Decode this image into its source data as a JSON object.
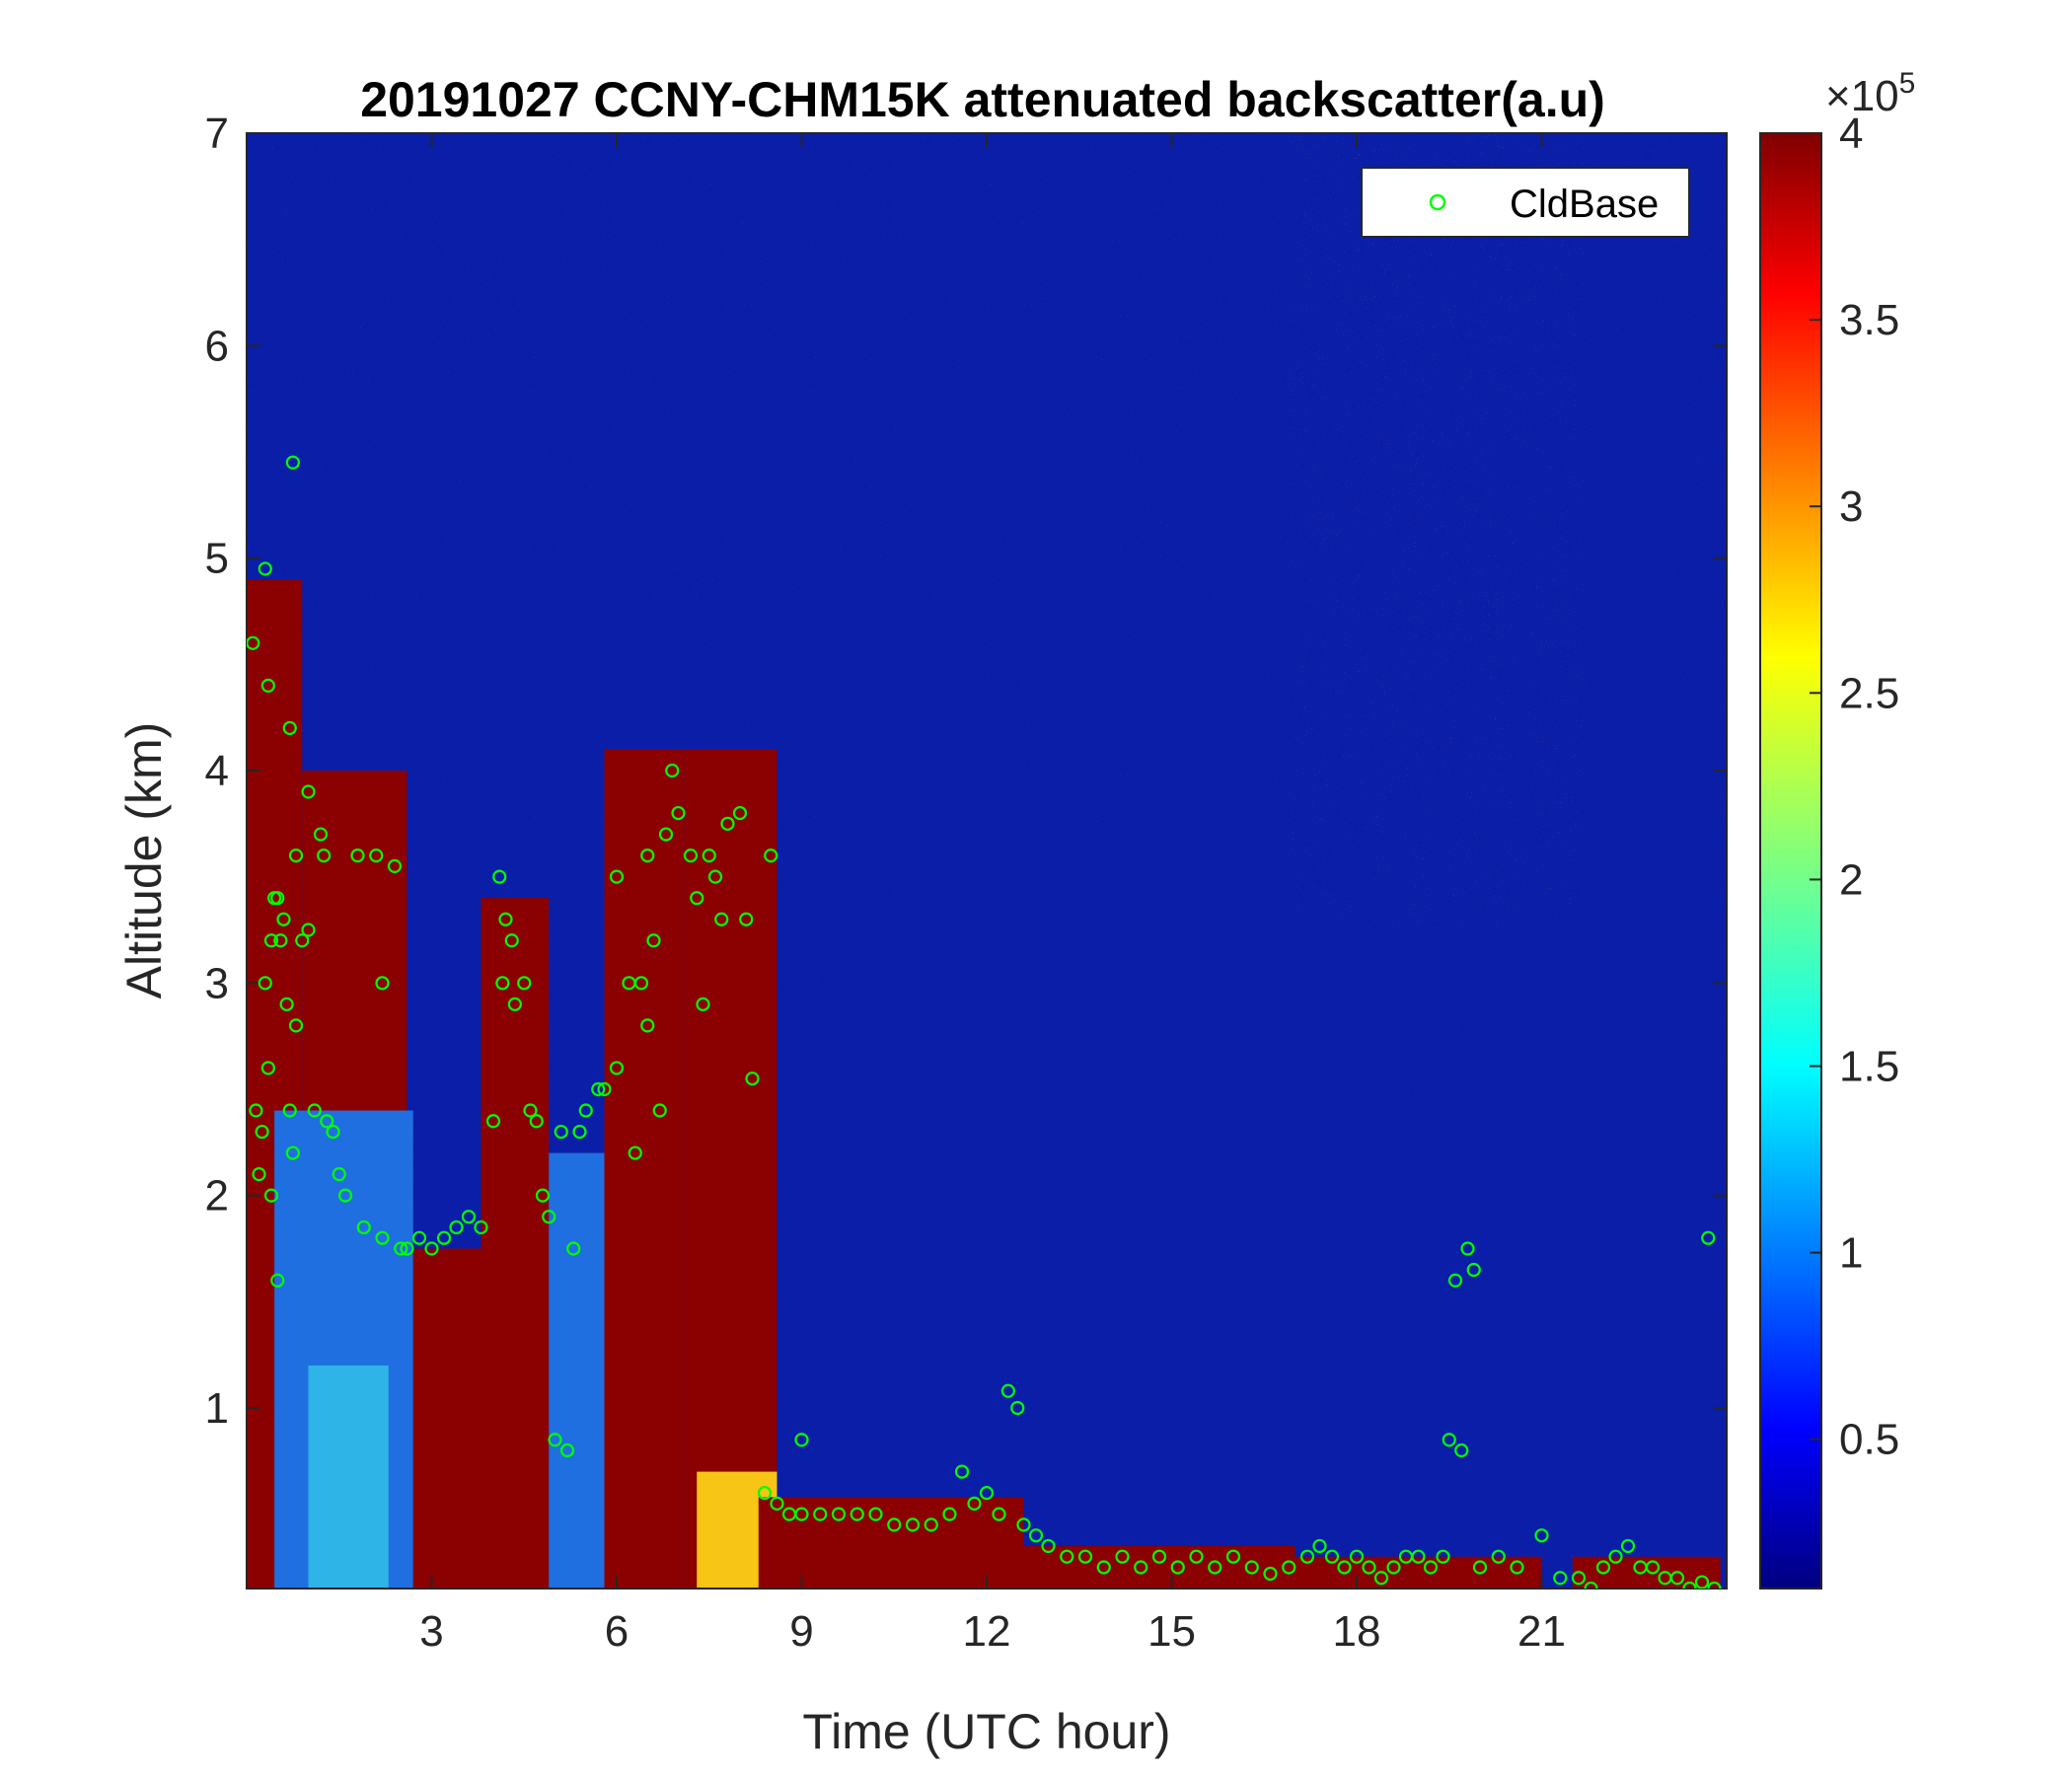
{
  "chart_data": {
    "type": "heatmap",
    "title": "20191027 CCNY-CHM15K attenuated backscatter(a.u)",
    "xlabel": "Time (UTC hour)",
    "ylabel": "Altitude (km)",
    "xlim": [
      0,
      24
    ],
    "ylim": [
      0.15,
      7
    ],
    "x_ticks": [
      3,
      6,
      9,
      12,
      15,
      18,
      21
    ],
    "x_tick_labels": [
      "3",
      "6",
      "9",
      "12",
      "15",
      "18",
      "21"
    ],
    "y_ticks": [
      1,
      2,
      3,
      4,
      5,
      6,
      7
    ],
    "y_tick_labels": [
      "1",
      "2",
      "3",
      "4",
      "5",
      "6",
      "7"
    ],
    "colorbar": {
      "range": [
        10000,
        400000
      ],
      "ticks": [
        50000,
        100000,
        150000,
        200000,
        250000,
        300000,
        350000,
        400000
      ],
      "tick_labels": [
        "0.5",
        "1",
        "1.5",
        "2",
        "2.5",
        "3",
        "3.5",
        "4"
      ],
      "multiplier_base": "×10",
      "multiplier_exp": "5",
      "colormap": "jet"
    },
    "legend": {
      "position": "top-right",
      "entries": [
        "CldBase"
      ]
    },
    "series": [
      {
        "name": "CldBase",
        "marker": "circle",
        "color": "#00ff00",
        "points": [
          [
            0.1,
            4.6
          ],
          [
            0.15,
            2.4
          ],
          [
            0.2,
            2.1
          ],
          [
            0.25,
            2.3
          ],
          [
            0.3,
            3.0
          ],
          [
            0.3,
            4.95
          ],
          [
            0.35,
            2.6
          ],
          [
            0.35,
            4.4
          ],
          [
            0.4,
            3.2
          ],
          [
            0.4,
            2.0
          ],
          [
            0.45,
            3.4
          ],
          [
            0.5,
            1.6
          ],
          [
            0.5,
            3.4
          ],
          [
            0.55,
            3.2
          ],
          [
            0.6,
            3.3
          ],
          [
            0.65,
            2.9
          ],
          [
            0.7,
            2.4
          ],
          [
            0.7,
            4.2
          ],
          [
            0.75,
            2.2
          ],
          [
            0.75,
            5.45
          ],
          [
            0.8,
            3.6
          ],
          [
            0.8,
            2.8
          ],
          [
            0.9,
            3.2
          ],
          [
            1.0,
            3.9
          ],
          [
            1.0,
            3.25
          ],
          [
            1.1,
            2.4
          ],
          [
            1.2,
            3.7
          ],
          [
            1.25,
            3.6
          ],
          [
            1.3,
            2.35
          ],
          [
            1.4,
            2.3
          ],
          [
            1.5,
            2.1
          ],
          [
            1.6,
            2.0
          ],
          [
            1.8,
            3.6
          ],
          [
            1.9,
            1.85
          ],
          [
            2.1,
            3.6
          ],
          [
            2.2,
            1.8
          ],
          [
            2.2,
            3.0
          ],
          [
            2.4,
            3.55
          ],
          [
            2.5,
            1.75
          ],
          [
            2.6,
            1.75
          ],
          [
            2.8,
            1.8
          ],
          [
            3.0,
            1.75
          ],
          [
            3.2,
            1.8
          ],
          [
            3.4,
            1.85
          ],
          [
            3.6,
            1.9
          ],
          [
            3.8,
            1.85
          ],
          [
            4.0,
            2.35
          ],
          [
            4.1,
            3.5
          ],
          [
            4.15,
            3.0
          ],
          [
            4.2,
            3.3
          ],
          [
            4.3,
            3.2
          ],
          [
            4.35,
            2.9
          ],
          [
            4.5,
            3.0
          ],
          [
            4.6,
            2.4
          ],
          [
            4.7,
            2.35
          ],
          [
            4.8,
            2.0
          ],
          [
            4.9,
            1.9
          ],
          [
            5.0,
            0.85
          ],
          [
            5.1,
            2.3
          ],
          [
            5.2,
            0.8
          ],
          [
            5.3,
            1.75
          ],
          [
            5.4,
            2.3
          ],
          [
            5.5,
            2.4
          ],
          [
            5.7,
            2.5
          ],
          [
            5.8,
            2.5
          ],
          [
            6.0,
            2.6
          ],
          [
            6.0,
            3.5
          ],
          [
            6.2,
            3.0
          ],
          [
            6.3,
            2.2
          ],
          [
            6.4,
            3.0
          ],
          [
            6.5,
            2.8
          ],
          [
            6.5,
            3.6
          ],
          [
            6.6,
            3.2
          ],
          [
            6.7,
            2.4
          ],
          [
            6.8,
            3.7
          ],
          [
            6.9,
            4.0
          ],
          [
            7.0,
            3.8
          ],
          [
            7.2,
            3.6
          ],
          [
            7.3,
            3.4
          ],
          [
            7.4,
            2.9
          ],
          [
            7.5,
            3.6
          ],
          [
            7.6,
            3.5
          ],
          [
            7.7,
            3.3
          ],
          [
            7.8,
            3.75
          ],
          [
            8.0,
            3.8
          ],
          [
            8.1,
            3.3
          ],
          [
            8.2,
            2.55
          ],
          [
            8.4,
            0.6
          ],
          [
            8.5,
            3.6
          ],
          [
            8.6,
            0.55
          ],
          [
            8.8,
            0.5
          ],
          [
            9.0,
            0.85
          ],
          [
            9.0,
            0.5
          ],
          [
            9.3,
            0.5
          ],
          [
            9.6,
            0.5
          ],
          [
            9.9,
            0.5
          ],
          [
            10.2,
            0.5
          ],
          [
            10.5,
            0.45
          ],
          [
            10.8,
            0.45
          ],
          [
            11.1,
            0.45
          ],
          [
            11.4,
            0.5
          ],
          [
            11.6,
            0.7
          ],
          [
            11.8,
            0.55
          ],
          [
            12.0,
            0.6
          ],
          [
            12.2,
            0.5
          ],
          [
            12.35,
            1.08
          ],
          [
            12.5,
            1.0
          ],
          [
            12.6,
            0.45
          ],
          [
            12.8,
            0.4
          ],
          [
            13.0,
            0.35
          ],
          [
            13.3,
            0.3
          ],
          [
            13.6,
            0.3
          ],
          [
            13.9,
            0.25
          ],
          [
            14.2,
            0.3
          ],
          [
            14.5,
            0.25
          ],
          [
            14.8,
            0.3
          ],
          [
            15.1,
            0.25
          ],
          [
            15.4,
            0.3
          ],
          [
            15.7,
            0.25
          ],
          [
            16.0,
            0.3
          ],
          [
            16.3,
            0.25
          ],
          [
            16.6,
            0.22
          ],
          [
            16.9,
            0.25
          ],
          [
            17.2,
            0.3
          ],
          [
            17.4,
            0.35
          ],
          [
            17.6,
            0.3
          ],
          [
            17.8,
            0.25
          ],
          [
            18.0,
            0.3
          ],
          [
            18.2,
            0.25
          ],
          [
            18.4,
            0.2
          ],
          [
            18.6,
            0.25
          ],
          [
            18.8,
            0.3
          ],
          [
            19.0,
            0.3
          ],
          [
            19.2,
            0.25
          ],
          [
            19.4,
            0.3
          ],
          [
            19.5,
            0.85
          ],
          [
            19.6,
            1.6
          ],
          [
            19.7,
            0.8
          ],
          [
            19.8,
            1.75
          ],
          [
            19.9,
            1.65
          ],
          [
            20.0,
            0.25
          ],
          [
            20.3,
            0.3
          ],
          [
            20.6,
            0.25
          ],
          [
            21.0,
            0.4
          ],
          [
            21.3,
            0.2
          ],
          [
            21.6,
            0.2
          ],
          [
            21.8,
            0.15
          ],
          [
            22.0,
            0.25
          ],
          [
            22.2,
            0.3
          ],
          [
            22.4,
            0.35
          ],
          [
            22.6,
            0.25
          ],
          [
            22.8,
            0.25
          ],
          [
            23.0,
            0.2
          ],
          [
            23.2,
            0.2
          ],
          [
            23.4,
            0.15
          ],
          [
            23.6,
            0.18
          ],
          [
            23.7,
            1.8
          ],
          [
            23.8,
            0.15
          ]
        ]
      }
    ]
  }
}
